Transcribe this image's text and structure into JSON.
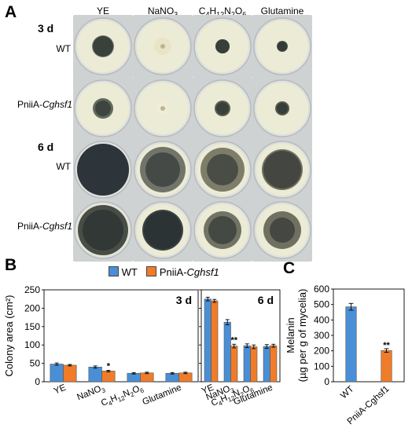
{
  "panel_a": {
    "letter": "A",
    "columns": [
      "YE",
      "NaNO",
      "C",
      "H",
      "N",
      "O",
      "Glutamine"
    ],
    "column_sub": {
      "nano3": "3",
      "c4": "4",
      "h12": "12",
      "n2": "2",
      "o6": "6"
    },
    "group_3d": "3 d",
    "group_6d": "6 d",
    "wt_label": "WT",
    "mutant_prefix": "PniiA-",
    "mutant_italic": "Cghsf1"
  },
  "panel_b": {
    "letter": "B",
    "legend": {
      "wt": "WT",
      "mutant_prefix": "PniiA-",
      "mutant_italic": "Cghsf1"
    },
    "colors": {
      "wt": "#4a8fd6",
      "mutant": "#f07c2a"
    }
  },
  "panel_c": {
    "letter": "C"
  },
  "chart_data": [
    {
      "type": "bar",
      "title": "3 d",
      "ylabel": "Colony area (cm²)",
      "ylim": [
        0,
        250
      ],
      "yticks": [
        0,
        50,
        100,
        150,
        200,
        250
      ],
      "categories": [
        "YE",
        "NaNO3",
        "C4H12N2O6",
        "Glutamine"
      ],
      "series": [
        {
          "name": "WT",
          "values": [
            48,
            40,
            23,
            23
          ],
          "errors": [
            3,
            3,
            2,
            2
          ]
        },
        {
          "name": "PniiA-Cghsf1",
          "values": [
            45,
            29,
            24,
            24
          ],
          "errors": [
            2,
            2,
            2,
            2
          ]
        }
      ],
      "annotations": [
        {
          "category": "NaNO3",
          "series": "PniiA-Cghsf1",
          "text": "*"
        }
      ]
    },
    {
      "type": "bar",
      "title": "6 d",
      "ylim": [
        0,
        250
      ],
      "yticks": [
        0,
        50,
        100,
        150,
        200,
        250
      ],
      "categories": [
        "YE",
        "NaNO3",
        "C4H12N2O6",
        "Glutamine"
      ],
      "series": [
        {
          "name": "WT",
          "values": [
            225,
            162,
            98,
            96
          ],
          "errors": [
            5,
            7,
            5,
            5
          ]
        },
        {
          "name": "PniiA-Cghsf1",
          "values": [
            220,
            97,
            95,
            98
          ],
          "errors": [
            4,
            5,
            5,
            4
          ]
        }
      ],
      "annotations": [
        {
          "category": "NaNO3",
          "series": "PniiA-Cghsf1",
          "text": "**"
        }
      ]
    },
    {
      "type": "bar",
      "ylabel_lines": [
        "Melanin",
        "(µg per g of mycelia)"
      ],
      "ylim": [
        0,
        600
      ],
      "yticks": [
        0,
        100,
        200,
        300,
        400,
        500,
        600
      ],
      "categories": [
        "WT",
        "PniiA-Cghsf1"
      ],
      "values": [
        485,
        202
      ],
      "errors": [
        22,
        12
      ],
      "colors": [
        "#4a8fd6",
        "#f07c2a"
      ],
      "annotations": [
        {
          "category": "PniiA-Cghsf1",
          "text": "**"
        }
      ]
    }
  ]
}
